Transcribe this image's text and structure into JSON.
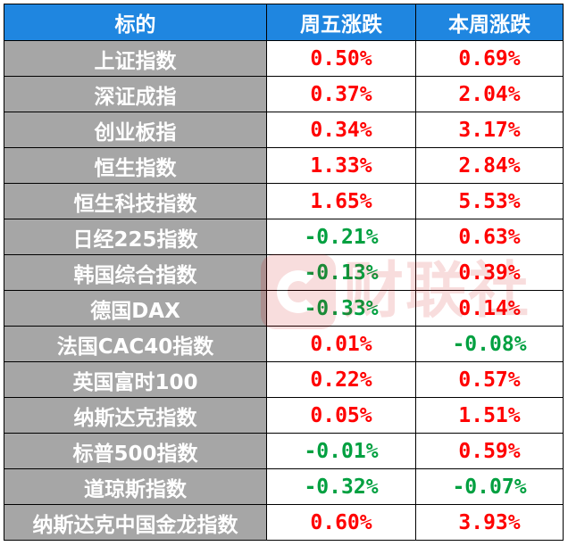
{
  "header": {
    "col1": "标的",
    "col2": "周五涨跌",
    "col3": "本周涨跌"
  },
  "rows": [
    {
      "name": "上证指数",
      "fri": "0.50%",
      "week": "0.69%",
      "fri_dir": "up",
      "week_dir": "up"
    },
    {
      "name": "深证成指",
      "fri": "0.37%",
      "week": "2.04%",
      "fri_dir": "up",
      "week_dir": "up"
    },
    {
      "name": "创业板指",
      "fri": "0.34%",
      "week": "3.17%",
      "fri_dir": "up",
      "week_dir": "up"
    },
    {
      "name": "恒生指数",
      "fri": "1.33%",
      "week": "2.84%",
      "fri_dir": "up",
      "week_dir": "up"
    },
    {
      "name": "恒生科技指数",
      "fri": "1.65%",
      "week": "5.53%",
      "fri_dir": "up",
      "week_dir": "up"
    },
    {
      "name": "日经225指数",
      "fri": "-0.21%",
      "week": "0.63%",
      "fri_dir": "down",
      "week_dir": "up"
    },
    {
      "name": "韩国综合指数",
      "fri": "-0.13%",
      "week": "0.39%",
      "fri_dir": "down",
      "week_dir": "up"
    },
    {
      "name": "德国DAX",
      "fri": "-0.33%",
      "week": "0.14%",
      "fri_dir": "down",
      "week_dir": "up"
    },
    {
      "name": "法国CAC40指数",
      "fri": "0.01%",
      "week": "-0.08%",
      "fri_dir": "up",
      "week_dir": "down"
    },
    {
      "name": "英国富时100",
      "fri": "0.22%",
      "week": "0.57%",
      "fri_dir": "up",
      "week_dir": "up"
    },
    {
      "name": "纳斯达克指数",
      "fri": "0.05%",
      "week": "1.51%",
      "fri_dir": "up",
      "week_dir": "up"
    },
    {
      "name": "标普500指数",
      "fri": "-0.01%",
      "week": "0.59%",
      "fri_dir": "down",
      "week_dir": "up"
    },
    {
      "name": "道琼斯指数",
      "fri": "-0.32%",
      "week": "-0.07%",
      "fri_dir": "down",
      "week_dir": "down"
    },
    {
      "name": "纳斯达克中国金龙指数",
      "fri": "0.60%",
      "week": "3.93%",
      "fri_dir": "up",
      "week_dir": "up"
    }
  ],
  "colors": {
    "header_bg": "#1f86e0",
    "name_bg": "#a6a6a6",
    "up": "#ff0000",
    "down": "#00a040"
  },
  "watermark": {
    "text": "财联社",
    "icon": "cls-logo-icon"
  }
}
